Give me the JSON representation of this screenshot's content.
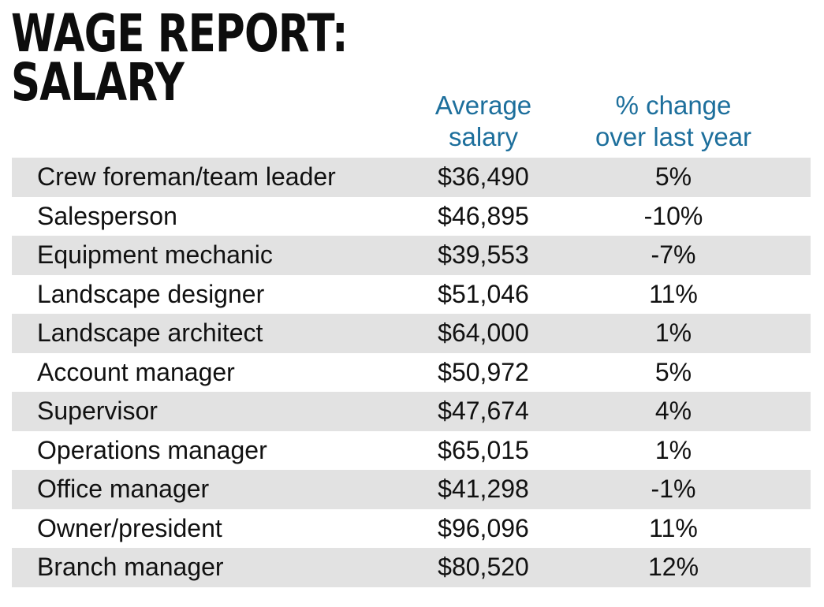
{
  "chart_data": {
    "type": "table",
    "title_line1": "WAGE REPORT:",
    "title_line2": "SALARY",
    "columns": [
      "",
      "Average\nsalary",
      "% change\nover last year"
    ],
    "rows": [
      {
        "job": "Crew foreman/team leader",
        "salary": "$36,490",
        "change": "5%"
      },
      {
        "job": "Salesperson",
        "salary": "$46,895",
        "change": "-10%"
      },
      {
        "job": "Equipment mechanic",
        "salary": "$39,553",
        "change": "-7%"
      },
      {
        "job": "Landscape designer",
        "salary": "$51,046",
        "change": "11%"
      },
      {
        "job": "Landscape architect",
        "salary": "$64,000",
        "change": "1%"
      },
      {
        "job": "Account manager",
        "salary": "$50,972",
        "change": "5%"
      },
      {
        "job": "Supervisor",
        "salary": "$47,674",
        "change": "4%"
      },
      {
        "job": "Operations manager",
        "salary": "$65,015",
        "change": "1%"
      },
      {
        "job": "Office manager",
        "salary": "$41,298",
        "change": "-1%"
      },
      {
        "job": "Owner/president",
        "salary": "$96,096",
        "change": "11%"
      },
      {
        "job": "Branch manager",
        "salary": "$80,520",
        "change": "12%"
      }
    ]
  },
  "colors": {
    "header_text": "#1d6f9c",
    "row_shade": "#e2e2e2",
    "body_text": "#111111"
  }
}
